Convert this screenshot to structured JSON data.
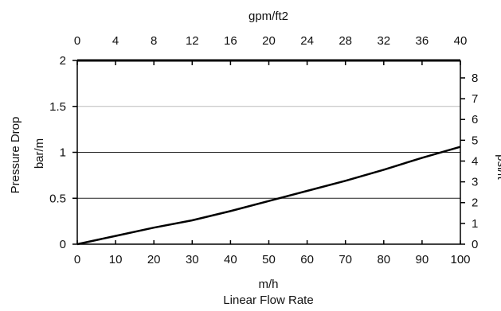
{
  "chart_data": {
    "type": "line",
    "title": "",
    "xlabel": "m/h",
    "xlabel2": "Linear Flow Rate",
    "ylabel": "Pressure Drop",
    "ylabel_unit": "bar/m",
    "y2label": "psi/ft",
    "top_axis_label": "gpm/ft2",
    "xlim": [
      0,
      100
    ],
    "ylim": [
      0,
      2
    ],
    "x_ticks": [
      0,
      10,
      20,
      30,
      40,
      50,
      60,
      70,
      80,
      90,
      100
    ],
    "y_ticks": [
      "0",
      "0.5",
      "1",
      "1.5",
      "2"
    ],
    "y_tick_values": [
      0,
      0.5,
      1,
      1.5,
      2
    ],
    "top_ticks": [
      0,
      4,
      8,
      12,
      16,
      20,
      24,
      28,
      32,
      36,
      40
    ],
    "top_range": [
      0,
      40
    ],
    "right_ticks": [
      0,
      1,
      2,
      3,
      4,
      5,
      6,
      7,
      8
    ],
    "right_range": [
      0,
      8.84
    ],
    "gridlines_y": [
      0.5,
      1,
      1.5
    ],
    "grid": true,
    "series": [
      {
        "x": [
          0,
          10,
          20,
          30,
          40,
          50,
          60,
          70,
          80,
          90,
          100
        ],
        "y": [
          0,
          0.09,
          0.18,
          0.26,
          0.36,
          0.47,
          0.58,
          0.69,
          0.81,
          0.94,
          1.06
        ]
      }
    ]
  }
}
